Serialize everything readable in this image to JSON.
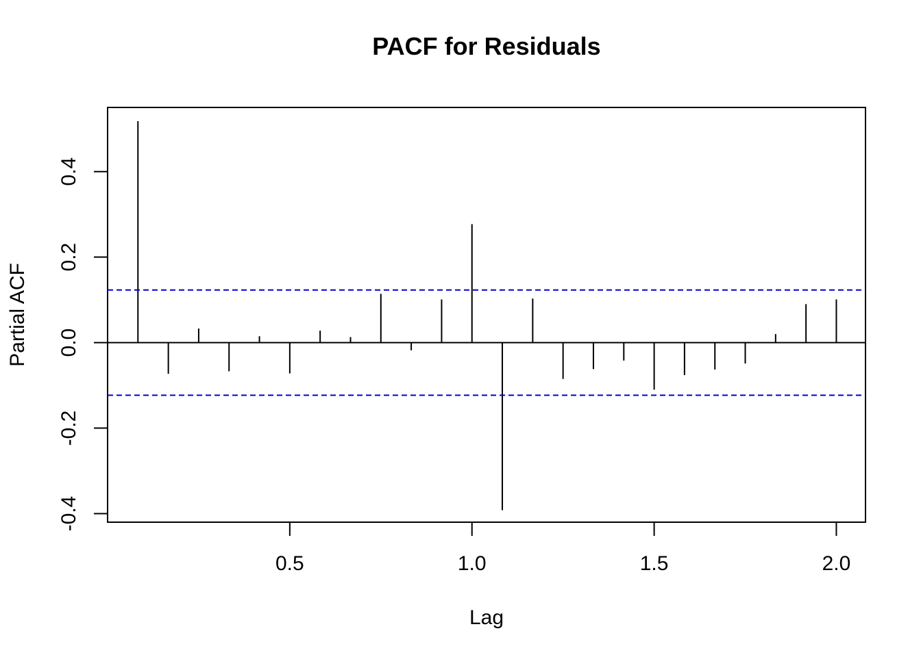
{
  "chart_data": {
    "type": "bar",
    "subtype": "pacf-spikes",
    "title": "PACF for Residuals",
    "xlabel": "Lag",
    "ylabel": "Partial ACF",
    "xlim": [
      0,
      2.08
    ],
    "ylim": [
      -0.42,
      0.55
    ],
    "x_ticks": [
      0.5,
      1.0,
      1.5,
      2.0
    ],
    "x_tick_labels": [
      "0.5",
      "1.0",
      "1.5",
      "2.0"
    ],
    "y_ticks": [
      -0.4,
      -0.2,
      0.0,
      0.2,
      0.4
    ],
    "y_tick_labels": [
      "-0.4",
      "-0.2",
      "0.0",
      "0.2",
      "0.4"
    ],
    "lags": [
      0.0833,
      0.1667,
      0.25,
      0.3333,
      0.4167,
      0.5,
      0.5833,
      0.6667,
      0.75,
      0.8333,
      0.9167,
      1.0,
      1.0833,
      1.1667,
      1.25,
      1.3333,
      1.4167,
      1.5,
      1.5833,
      1.6667,
      1.75,
      1.8333,
      1.9167,
      2.0
    ],
    "values": [
      0.518,
      -0.073,
      0.033,
      -0.067,
      0.015,
      -0.072,
      0.028,
      0.013,
      0.114,
      -0.018,
      0.101,
      0.277,
      -0.392,
      0.103,
      -0.085,
      -0.062,
      -0.042,
      -0.11,
      -0.076,
      -0.063,
      -0.049,
      0.02,
      0.09,
      0.101
    ],
    "confidence_bounds": [
      0.123,
      -0.123
    ],
    "grid": false,
    "colors": {
      "spike": "#000000",
      "zero_line": "#000000",
      "bound_line": "#0000cc"
    }
  }
}
